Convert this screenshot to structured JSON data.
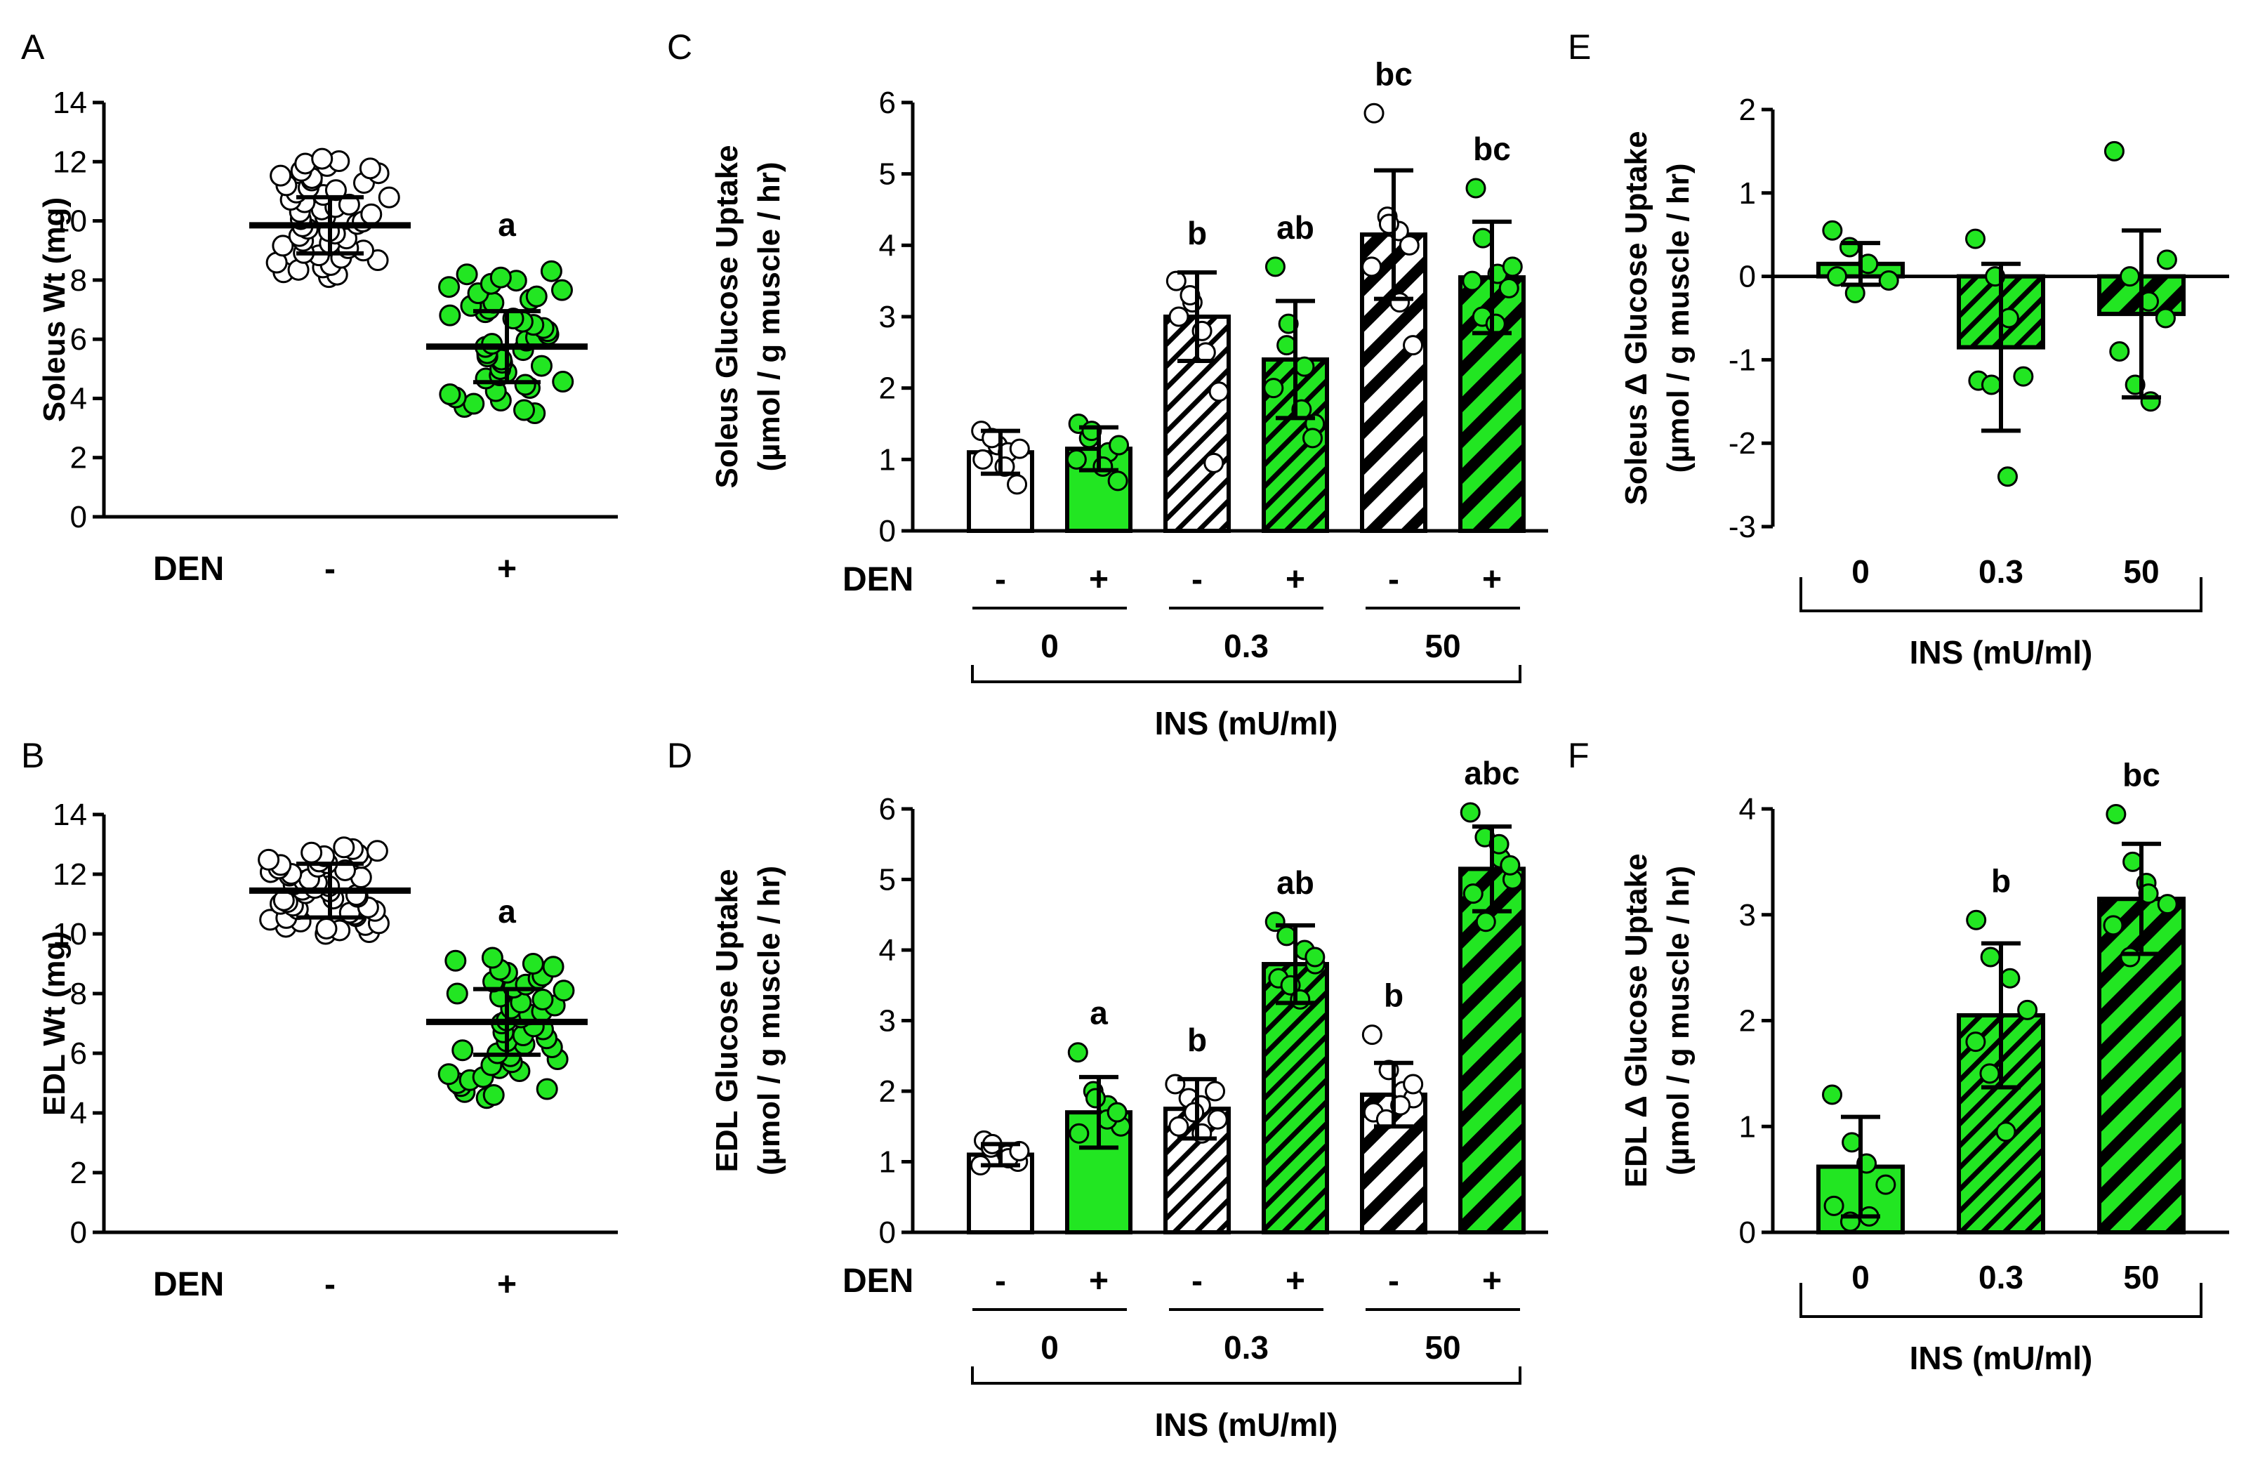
{
  "colors": {
    "green": "#22e622",
    "white": "#ffffff",
    "black": "#000000"
  },
  "chart_data": [
    {
      "panel": "A",
      "type": "scatter",
      "ylabel": "Soleus Wt (mg)",
      "ylim": [
        0,
        14
      ],
      "yticks": [
        0,
        2,
        4,
        6,
        8,
        10,
        12,
        14
      ],
      "den_label": "DEN",
      "groups": [
        {
          "den": "-",
          "fill": "white",
          "mean": 9.85,
          "sd": 0.95,
          "sig": "",
          "n": 50,
          "spread": [
            8.1,
            12.1
          ]
        },
        {
          "den": "+",
          "fill": "green",
          "mean": 5.75,
          "sd": 1.2,
          "sig": "a",
          "n": 46,
          "spread": [
            3.5,
            8.3
          ]
        }
      ]
    },
    {
      "panel": "B",
      "type": "scatter",
      "ylabel": "EDL Wt (mg)",
      "ylim": [
        0,
        14
      ],
      "yticks": [
        0,
        2,
        4,
        6,
        8,
        10,
        12,
        14
      ],
      "den_label": "DEN",
      "groups": [
        {
          "den": "-",
          "fill": "white",
          "mean": 11.45,
          "sd": 0.9,
          "sig": "",
          "n": 50,
          "spread": [
            10.0,
            12.9
          ]
        },
        {
          "den": "+",
          "fill": "green",
          "mean": 7.05,
          "sd": 1.1,
          "sig": "a",
          "n": 48,
          "spread": [
            4.5,
            9.2
          ]
        }
      ]
    },
    {
      "panel": "C",
      "type": "bar",
      "ylabel": "Soleus Glucose Uptake",
      "ylabel2": "(µmol / g muscle / hr)",
      "ylim": [
        0,
        6
      ],
      "yticks": [
        0,
        1,
        2,
        3,
        4,
        5,
        6
      ],
      "den_label": "DEN",
      "ins_label": "INS (mU/ml)",
      "doses": [
        "0",
        "0.3",
        "50"
      ],
      "bars": [
        {
          "den": "-",
          "dose": "0",
          "value": 1.1,
          "sd": 0.3,
          "fill": "white",
          "hatch": "none",
          "sig": "",
          "points": [
            1.4,
            1.2,
            1.1,
            0.65,
            1.0,
            1.3,
            0.9,
            1.15
          ]
        },
        {
          "den": "+",
          "dose": "0",
          "value": 1.15,
          "sd": 0.3,
          "fill": "green",
          "hatch": "none",
          "sig": "",
          "points": [
            1.5,
            1.3,
            1.1,
            0.7,
            1.0,
            1.4,
            0.9,
            1.2
          ]
        },
        {
          "den": "-",
          "dose": "0.3",
          "value": 3.0,
          "sd": 0.62,
          "fill": "white",
          "hatch": "thin",
          "sig": "b",
          "points": [
            3.5,
            3.2,
            2.8,
            1.95,
            3.0,
            3.3,
            2.5,
            0.95
          ]
        },
        {
          "den": "+",
          "dose": "0.3",
          "value": 2.4,
          "sd": 0.82,
          "fill": "green",
          "hatch": "thin",
          "sig": "ab",
          "points": [
            3.7,
            2.9,
            2.3,
            1.5,
            2.0,
            2.6,
            1.7,
            1.3
          ]
        },
        {
          "den": "-",
          "dose": "50",
          "value": 4.15,
          "sd": 0.9,
          "fill": "white",
          "hatch": "thick",
          "sig": "bc",
          "points": [
            5.85,
            4.4,
            4.2,
            4.0,
            3.7,
            4.3,
            3.2,
            2.6
          ]
        },
        {
          "den": "+",
          "dose": "50",
          "value": 3.55,
          "sd": 0.78,
          "fill": "green",
          "hatch": "thick",
          "sig": "bc",
          "points": [
            4.8,
            4.1,
            3.6,
            3.4,
            3.5,
            3.0,
            2.9,
            3.7
          ]
        }
      ]
    },
    {
      "panel": "D",
      "type": "bar",
      "ylabel": "EDL Glucose Uptake",
      "ylabel2": "(µmol / g muscle / hr)",
      "ylim": [
        0,
        6
      ],
      "yticks": [
        0,
        1,
        2,
        3,
        4,
        5,
        6
      ],
      "den_label": "DEN",
      "ins_label": "INS (mU/ml)",
      "doses": [
        "0",
        "0.3",
        "50"
      ],
      "bars": [
        {
          "den": "-",
          "dose": "0",
          "value": 1.1,
          "sd": 0.15,
          "fill": "white",
          "hatch": "none",
          "sig": "",
          "points": [
            1.3,
            1.2,
            1.1,
            1.0,
            0.95,
            1.25,
            1.05,
            1.15
          ]
        },
        {
          "den": "+",
          "dose": "0",
          "value": 1.7,
          "sd": 0.5,
          "fill": "green",
          "hatch": "none",
          "sig": "a",
          "points": [
            2.55,
            2.0,
            1.8,
            1.5,
            1.4,
            1.9,
            1.6,
            1.7
          ]
        },
        {
          "den": "-",
          "dose": "0.3",
          "value": 1.75,
          "sd": 0.42,
          "fill": "white",
          "hatch": "thin",
          "sig": "b",
          "points": [
            2.1,
            1.9,
            1.8,
            1.6,
            1.5,
            1.7,
            1.4,
            2.0
          ]
        },
        {
          "den": "+",
          "dose": "0.3",
          "value": 3.8,
          "sd": 0.55,
          "fill": "green",
          "hatch": "thin",
          "sig": "ab",
          "points": [
            4.4,
            4.2,
            4.0,
            3.8,
            3.6,
            3.5,
            3.3,
            3.9
          ]
        },
        {
          "den": "-",
          "dose": "50",
          "value": 1.95,
          "sd": 0.45,
          "fill": "white",
          "hatch": "thick",
          "sig": "b",
          "points": [
            2.8,
            2.3,
            2.0,
            1.9,
            1.7,
            1.6,
            1.8,
            2.1
          ]
        },
        {
          "den": "+",
          "dose": "50",
          "value": 5.15,
          "sd": 0.6,
          "fill": "green",
          "hatch": "thick",
          "sig": "abc",
          "points": [
            5.95,
            5.6,
            5.3,
            5.0,
            4.8,
            4.4,
            5.5,
            5.2
          ]
        }
      ]
    },
    {
      "panel": "E",
      "type": "bar",
      "ylabel": "Soleus Δ Glucose Uptake",
      "ylabel2": "(µmol / g muscle / hr)",
      "ylim": [
        -3,
        2
      ],
      "yticks": [
        -3,
        -2,
        -1,
        0,
        1,
        2
      ],
      "ins_label": "INS (mU/ml)",
      "categories": [
        "0",
        "0.3",
        "50"
      ],
      "bars": [
        {
          "dose": "0",
          "value": 0.15,
          "sd": 0.25,
          "fill": "green",
          "hatch": "none",
          "sig": "",
          "points": [
            0.55,
            0.35,
            0.15,
            -0.05,
            0.0,
            -0.2
          ]
        },
        {
          "dose": "0.3",
          "value": -0.85,
          "sd": 1.0,
          "fill": "green",
          "hatch": "thin",
          "sig": "",
          "points": [
            0.45,
            0.0,
            -0.5,
            -1.2,
            -1.25,
            -1.3,
            -2.4
          ]
        },
        {
          "dose": "50",
          "value": -0.45,
          "sd": 1.0,
          "fill": "green",
          "hatch": "thick",
          "sig": "",
          "points": [
            1.5,
            0.0,
            -0.3,
            -0.5,
            -0.9,
            -1.3,
            -1.5,
            0.2
          ]
        }
      ]
    },
    {
      "panel": "F",
      "type": "bar",
      "ylabel": "EDL Δ Glucose Uptake",
      "ylabel2": "(µmol / g muscle / hr)",
      "ylim": [
        0,
        4
      ],
      "yticks": [
        0,
        1,
        2,
        3,
        4
      ],
      "ins_label": "INS (mU/ml)",
      "categories": [
        "0",
        "0.3",
        "50"
      ],
      "bars": [
        {
          "dose": "0",
          "value": 0.62,
          "sd": 0.47,
          "fill": "green",
          "hatch": "none",
          "sig": "",
          "points": [
            1.3,
            0.85,
            0.65,
            0.45,
            0.25,
            0.1,
            0.15
          ]
        },
        {
          "dose": "0.3",
          "value": 2.05,
          "sd": 0.68,
          "fill": "green",
          "hatch": "thin",
          "sig": "b",
          "points": [
            2.95,
            2.6,
            2.4,
            2.1,
            1.8,
            1.5,
            0.95
          ]
        },
        {
          "dose": "50",
          "value": 3.15,
          "sd": 0.52,
          "fill": "green",
          "hatch": "thick",
          "sig": "bc",
          "points": [
            3.95,
            3.5,
            3.3,
            3.1,
            2.9,
            2.6,
            3.2
          ]
        }
      ]
    }
  ]
}
